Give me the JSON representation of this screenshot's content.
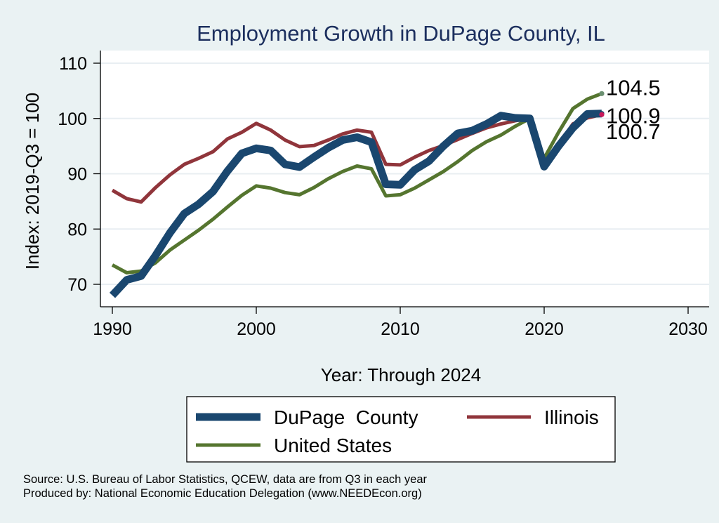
{
  "chart_data": {
    "type": "line",
    "title": "Employment Growth in DuPage County, IL",
    "xlabel": "Year: Through 2024",
    "ylabel": "Index: 2019-Q3 = 100",
    "xlim": [
      1990,
      2030
    ],
    "ylim": [
      65,
      111
    ],
    "x_ticks": [
      1990,
      2000,
      2010,
      2020,
      2030
    ],
    "y_ticks": [
      70,
      80,
      90,
      100,
      110
    ],
    "grid": true,
    "x": [
      1990,
      1991,
      1992,
      1993,
      1994,
      1995,
      1996,
      1997,
      1998,
      1999,
      2000,
      2001,
      2002,
      2003,
      2004,
      2005,
      2006,
      2007,
      2008,
      2009,
      2010,
      2011,
      2012,
      2013,
      2014,
      2015,
      2016,
      2017,
      2018,
      2019,
      2020,
      2021,
      2022,
      2023,
      2024
    ],
    "series": [
      {
        "name": "DuPage  County",
        "color": "#1a476f",
        "values": [
          68.0,
          70.8,
          71.5,
          75.2,
          79.3,
          82.8,
          84.5,
          86.8,
          90.5,
          93.7,
          94.6,
          94.2,
          91.7,
          91.2,
          93.0,
          94.7,
          96.1,
          96.6,
          95.7,
          88.1,
          88.0,
          90.7,
          92.3,
          95.0,
          97.3,
          97.8,
          99.0,
          100.5,
          100.1,
          100.0,
          91.3,
          95.0,
          98.3,
          100.8,
          100.9
        ],
        "end_label": "100.9"
      },
      {
        "name": "Illinois",
        "color": "#90353b",
        "values": [
          87.0,
          85.5,
          84.9,
          87.5,
          89.8,
          91.7,
          92.8,
          94.0,
          96.3,
          97.5,
          99.1,
          97.9,
          96.1,
          94.9,
          95.1,
          96.1,
          97.2,
          97.9,
          97.5,
          91.7,
          91.6,
          93.0,
          94.2,
          95.1,
          96.2,
          97.3,
          98.3,
          99.0,
          99.6,
          100.0,
          92.0,
          95.2,
          99.0,
          100.1,
          100.7
        ],
        "end_label": "100.7"
      },
      {
        "name": "United States",
        "color": "#55752f",
        "values": [
          73.5,
          72.1,
          72.4,
          73.9,
          76.2,
          78.0,
          79.8,
          81.8,
          84.0,
          86.1,
          87.8,
          87.4,
          86.6,
          86.2,
          87.5,
          89.1,
          90.4,
          91.4,
          90.9,
          86.0,
          86.2,
          87.4,
          88.9,
          90.4,
          92.2,
          94.2,
          95.8,
          97.0,
          98.6,
          100.0,
          92.8,
          97.5,
          101.8,
          103.5,
          104.5
        ],
        "end_label": "104.5"
      }
    ],
    "legend": {
      "placement": "bottom",
      "items": [
        {
          "label": "DuPage  County",
          "color": "#1a476f",
          "series": 0
        },
        {
          "label": "Illinois",
          "color": "#90353b",
          "series": 1
        },
        {
          "label": "United States",
          "color": "#55752f",
          "series": 2
        }
      ]
    }
  },
  "footer": {
    "source": "Source: U.S. Bureau of Labor Statistics, QCEW, data are from Q3 in each year",
    "produced_by": "Produced by: National Economic Education Delegation (www.NEEDEcon.org)"
  }
}
